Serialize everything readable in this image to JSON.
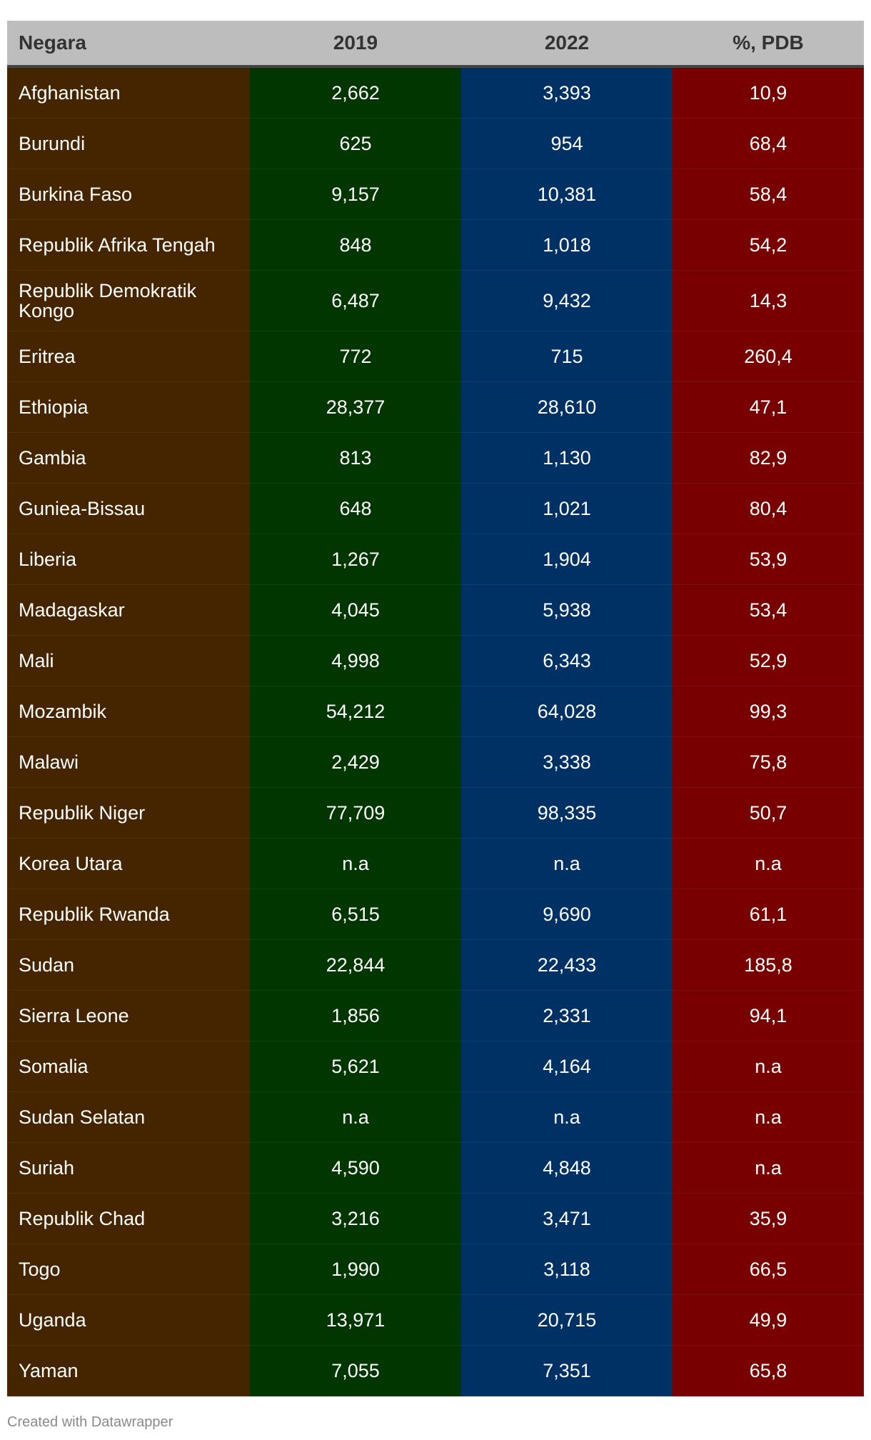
{
  "colors": {
    "header_bg": "#bdbdbd",
    "country_col": "#442500",
    "col_2019": "#023600",
    "col_2022": "#003164",
    "col_pdb": "#780000"
  },
  "chart_data": {
    "type": "table",
    "columns": [
      "Negara",
      "2019",
      "2022",
      "%, PDB"
    ],
    "rows": [
      [
        "Afghanistan",
        "2,662",
        "3,393",
        "10,9"
      ],
      [
        "Burundi",
        "625",
        "954",
        "68,4"
      ],
      [
        "Burkina Faso",
        "9,157",
        "10,381",
        "58,4"
      ],
      [
        "Republik Afrika Tengah",
        "848",
        "1,018",
        "54,2"
      ],
      [
        "Republik Demokratik Kongo",
        "6,487",
        "9,432",
        "14,3"
      ],
      [
        "Eritrea",
        "772",
        "715",
        "260,4"
      ],
      [
        "Ethiopia",
        "28,377",
        "28,610",
        "47,1"
      ],
      [
        "Gambia",
        "813",
        "1,130",
        "82,9"
      ],
      [
        "Guniea-Bissau",
        "648",
        "1,021",
        "80,4"
      ],
      [
        "Liberia",
        "1,267",
        "1,904",
        "53,9"
      ],
      [
        "Madagaskar",
        "4,045",
        "5,938",
        "53,4"
      ],
      [
        "Mali",
        "4,998",
        "6,343",
        "52,9"
      ],
      [
        "Mozambik",
        "54,212",
        "64,028",
        "99,3"
      ],
      [
        "Malawi",
        "2,429",
        "3,338",
        "75,8"
      ],
      [
        "Republik Niger",
        "77,709",
        "98,335",
        "50,7"
      ],
      [
        "Korea Utara",
        "n.a",
        "n.a",
        "n.a"
      ],
      [
        "Republik Rwanda",
        "6,515",
        "9,690",
        "61,1"
      ],
      [
        "Sudan",
        "22,844",
        "22,433",
        "185,8"
      ],
      [
        "Sierra Leone",
        "1,856",
        "2,331",
        "94,1"
      ],
      [
        "Somalia",
        "5,621",
        "4,164",
        "n.a"
      ],
      [
        "Sudan Selatan",
        "n.a",
        "n.a",
        "n.a"
      ],
      [
        "Suriah",
        "4,590",
        "4,848",
        "n.a"
      ],
      [
        "Republik Chad",
        "3,216",
        "3,471",
        "35,9"
      ],
      [
        "Togo",
        "1,990",
        "3,118",
        "66,5"
      ],
      [
        "Uganda",
        "13,971",
        "20,715",
        "49,9"
      ],
      [
        "Yaman",
        "7,055",
        "7,351",
        "65,8"
      ]
    ]
  },
  "footer": "Created with Datawrapper"
}
